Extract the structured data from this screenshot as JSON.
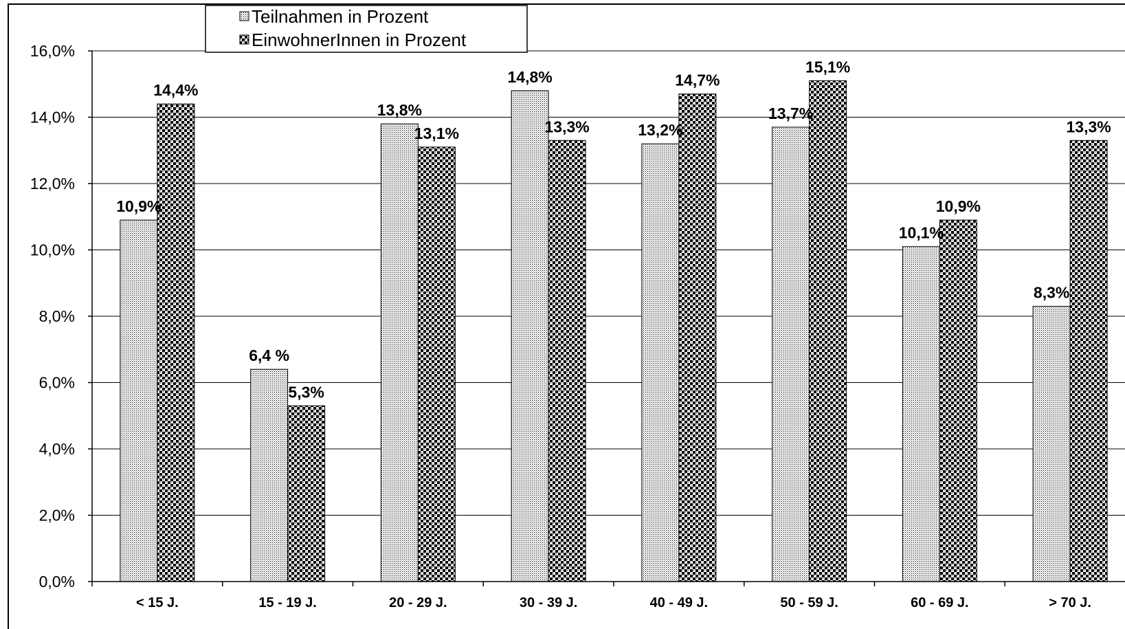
{
  "chart_data": {
    "type": "bar",
    "categories": [
      "< 15 J.",
      "15 - 19 J.",
      "20 - 29 J.",
      "30 - 39 J.",
      "40 - 49 J.",
      "50 - 59 J.",
      "60 - 69 J.",
      "> 70 J."
    ],
    "series": [
      {
        "name": "Teilnahmen in Prozent",
        "values": [
          10.9,
          6.4,
          13.8,
          14.8,
          13.2,
          13.7,
          10.1,
          8.3
        ],
        "labels": [
          "10,9%",
          "6,4 %",
          "13,8%",
          "14,8%",
          "13,2%",
          "13,7%",
          "10,1%",
          "8,3%"
        ],
        "pattern": "fine-dots"
      },
      {
        "name": "EinwohnerInnen in Prozent",
        "values": [
          14.4,
          5.3,
          13.1,
          13.3,
          14.7,
          15.1,
          10.9,
          13.3
        ],
        "labels": [
          "14,4%",
          "5,3%",
          "13,1%",
          "13,3%",
          "14,7%",
          "15,1%",
          "10,9%",
          "13,3%"
        ],
        "pattern": "coarse-checker"
      }
    ],
    "ylim": [
      0,
      16
    ],
    "yticks": [
      0,
      2,
      4,
      6,
      8,
      10,
      12,
      14,
      16
    ],
    "ytick_labels": [
      "0,0%",
      "2,0%",
      "4,0%",
      "6,0%",
      "8,0%",
      "10,0%",
      "12,0%",
      "14,0%",
      "16,0%"
    ],
    "grid": true,
    "legend_position": "top",
    "title": "",
    "xlabel": "",
    "ylabel": ""
  }
}
